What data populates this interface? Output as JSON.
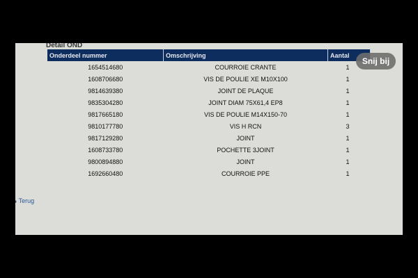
{
  "section_title": "Detail OND",
  "table": {
    "headers": [
      "Onderdeel nummer",
      "Omschrijving",
      "Aantal"
    ],
    "rows": [
      [
        "1654514680",
        "COURROIE CRANTE",
        "1"
      ],
      [
        "1608706680",
        "VIS DE POULIE XE M10X100",
        "1"
      ],
      [
        "9814639380",
        "JOINT DE PLAQUE",
        "1"
      ],
      [
        "9835304280",
        "JOINT DIAM 75X61,4 EP8",
        "1"
      ],
      [
        "9817665180",
        "VIS DE POULIE M14X150-70",
        "1"
      ],
      [
        "9810177780",
        "VIS H RCN",
        "3"
      ],
      [
        "9817129280",
        "JOINT",
        "1"
      ],
      [
        "1608733780",
        "POCHETTE 3JOINT",
        "1"
      ],
      [
        "9800894880",
        "JOINT",
        "1"
      ],
      [
        "1692660480",
        "COURROIE PPE",
        "1"
      ]
    ]
  },
  "back_link": "Terug",
  "crop_button": "Snij bij",
  "colors": {
    "header_bg": "#0d2d5e",
    "link": "#2a5a9a"
  }
}
